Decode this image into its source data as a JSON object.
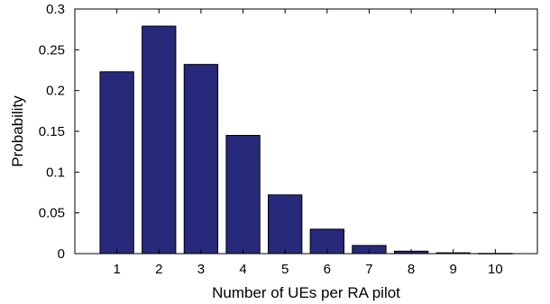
{
  "chart_data": {
    "type": "bar",
    "categories": [
      "1",
      "2",
      "3",
      "4",
      "5",
      "6",
      "7",
      "8",
      "9",
      "10"
    ],
    "values": [
      0.223,
      0.279,
      0.232,
      0.145,
      0.072,
      0.03,
      0.01,
      0.003,
      0.001,
      0.0003
    ],
    "title": "",
    "xlabel": "Number of UEs per RA pilot",
    "ylabel": "Probability",
    "ylim": [
      0,
      0.3
    ],
    "xlim": [
      0,
      11
    ],
    "yticks": [
      "0",
      "0.05",
      "0.1",
      "0.15",
      "0.2",
      "0.25",
      "0.3"
    ],
    "grid": false,
    "colors": {
      "bar": "#27297a"
    }
  }
}
